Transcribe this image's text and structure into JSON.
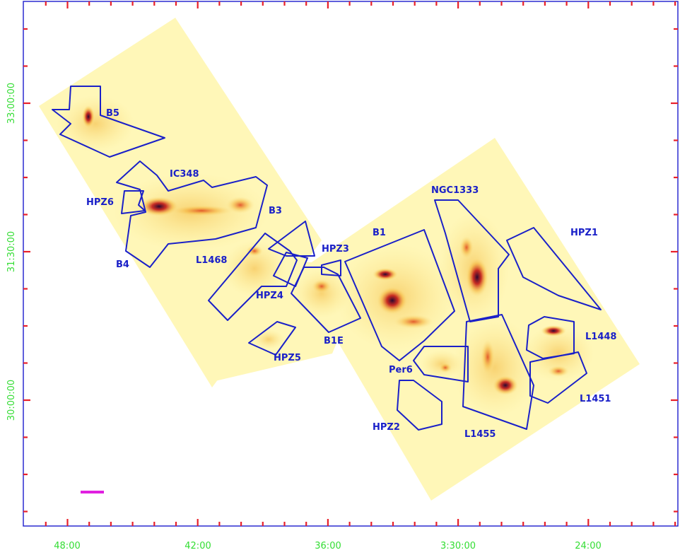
{
  "colors": {
    "frame": "#2a2ad0",
    "tick": "#e8202a",
    "tick_label": "#33dd33",
    "region_outline": "#1a20c8",
    "region_label": "#1a20c8",
    "footprint": "#fff7b8",
    "emission_mid": "#f4b23c",
    "emission_high": "#c21818",
    "emission_peak": "#2a0830",
    "scale_bar": "#e020e0"
  },
  "axes": {
    "x_tick_labels": [
      "48:00",
      "42:00",
      "36:00",
      "3:30:00",
      "24:00"
    ],
    "y_tick_labels": [
      "33:00:00",
      "31:30:00",
      "30:00:00"
    ]
  },
  "regions": {
    "b5": "B5",
    "ic348": "IC348",
    "hpz6": "HPZ6",
    "b3": "B3",
    "b4": "B4",
    "l1468": "L1468",
    "hpz3": "HPZ3",
    "hpz4": "HPZ4",
    "b1": "B1",
    "ngc1333": "NGC1333",
    "hpz1": "HPZ1",
    "hpz5": "HPZ5",
    "b1e": "B1E",
    "per6": "Per6",
    "l1448": "L1448",
    "l1451": "L1451",
    "hpz2": "HPZ2",
    "l1455": "L1455"
  }
}
